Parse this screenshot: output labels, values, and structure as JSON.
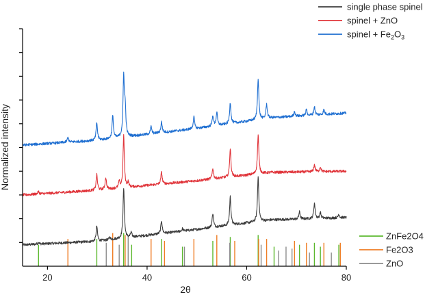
{
  "chart_data": {
    "type": "line",
    "xlabel": "2θ",
    "ylabel": "Normalized intensity",
    "xlim": [
      15,
      80
    ],
    "x_ticks": [
      20,
      40,
      60,
      80
    ],
    "ylim": [
      0,
      10
    ],
    "y_ticks": [
      1,
      2,
      3,
      4,
      5,
      6,
      7,
      8,
      9,
      10
    ],
    "y_tick_labels": "none",
    "grid": false,
    "series": [
      {
        "name": "single phase spinel",
        "color": "#3d3d3d",
        "baseline": [
          [
            15,
            0.9
          ],
          [
            30,
            1.05
          ],
          [
            50,
            1.55
          ],
          [
            65,
            1.95
          ],
          [
            80,
            2.05
          ]
        ],
        "peaks": [
          [
            18.2,
            0.08
          ],
          [
            29.9,
            0.65
          ],
          [
            32.5,
            0.1
          ],
          [
            35.3,
            2.1
          ],
          [
            36.8,
            0.2
          ],
          [
            42.9,
            0.55
          ],
          [
            47.1,
            0.1
          ],
          [
            53.2,
            0.6
          ],
          [
            56.7,
            1.2
          ],
          [
            62.3,
            1.9
          ],
          [
            70.6,
            0.3
          ],
          [
            73.6,
            0.65
          ],
          [
            74.8,
            0.25
          ],
          [
            78.5,
            0.15
          ]
        ]
      },
      {
        "name": "spinel + ZnO",
        "color": "#e0343a",
        "baseline": [
          [
            15,
            3.0
          ],
          [
            30,
            3.2
          ],
          [
            50,
            3.6
          ],
          [
            65,
            3.95
          ],
          [
            80,
            4.0
          ]
        ],
        "peaks": [
          [
            18.2,
            0.1
          ],
          [
            29.9,
            0.65
          ],
          [
            31.7,
            0.5
          ],
          [
            34.4,
            0.25
          ],
          [
            35.3,
            2.2
          ],
          [
            36.2,
            0.2
          ],
          [
            42.9,
            0.5
          ],
          [
            53.2,
            0.45
          ],
          [
            56.7,
            1.2
          ],
          [
            62.3,
            1.65
          ],
          [
            73.6,
            0.3
          ],
          [
            74.8,
            0.2
          ]
        ]
      },
      {
        "name": "spinel + Fe2O3",
        "color": "#1f6fd1",
        "baseline": [
          [
            15,
            5.1
          ],
          [
            30,
            5.3
          ],
          [
            50,
            5.8
          ],
          [
            65,
            6.25
          ],
          [
            80,
            6.45
          ]
        ],
        "peaks": [
          [
            24.1,
            0.2
          ],
          [
            29.9,
            0.75
          ],
          [
            33.1,
            0.95
          ],
          [
            35.3,
            2.5
          ],
          [
            35.6,
            1.1
          ],
          [
            40.8,
            0.3
          ],
          [
            42.9,
            0.45
          ],
          [
            49.4,
            0.5
          ],
          [
            53.2,
            0.45
          ],
          [
            54.0,
            0.55
          ],
          [
            56.7,
            0.9
          ],
          [
            62.3,
            1.75
          ],
          [
            64.0,
            0.6
          ],
          [
            69.6,
            0.2
          ],
          [
            72.0,
            0.25
          ],
          [
            73.6,
            0.35
          ],
          [
            75.5,
            0.2
          ]
        ]
      }
    ],
    "reference_sets": [
      {
        "name": "ZnFe2O4",
        "color": "#5cb82e",
        "lines": [
          [
            18.2,
            0.55
          ],
          [
            29.9,
            0.7
          ],
          [
            35.3,
            0.85
          ],
          [
            36.9,
            0.55
          ],
          [
            42.9,
            0.7
          ],
          [
            47.1,
            0.5
          ],
          [
            53.2,
            0.65
          ],
          [
            56.7,
            0.75
          ],
          [
            62.3,
            0.8
          ],
          [
            65.5,
            0.5
          ],
          [
            70.6,
            0.55
          ],
          [
            73.6,
            0.6
          ],
          [
            74.8,
            0.5
          ],
          [
            78.5,
            0.55
          ]
        ]
      },
      {
        "name": "Fe2O3",
        "color": "#ef7d24",
        "lines": [
          [
            24.1,
            0.7
          ],
          [
            33.1,
            0.85
          ],
          [
            35.6,
            0.8
          ],
          [
            40.8,
            0.7
          ],
          [
            43.5,
            0.65
          ],
          [
            49.4,
            0.7
          ],
          [
            54.0,
            0.8
          ],
          [
            57.6,
            0.65
          ],
          [
            62.4,
            0.7
          ],
          [
            64.0,
            0.7
          ],
          [
            69.6,
            0.65
          ],
          [
            72.0,
            0.6
          ],
          [
            75.5,
            0.6
          ],
          [
            78.8,
            0.6
          ]
        ]
      },
      {
        "name": "ZnO",
        "color": "#8c8c8c",
        "lines": [
          [
            31.8,
            0.6
          ],
          [
            34.4,
            0.55
          ],
          [
            36.2,
            0.75
          ],
          [
            47.5,
            0.5
          ],
          [
            56.6,
            0.6
          ],
          [
            62.9,
            0.55
          ],
          [
            66.4,
            0.4
          ],
          [
            67.9,
            0.5
          ],
          [
            69.1,
            0.45
          ],
          [
            72.6,
            0.35
          ],
          [
            77.0,
            0.35
          ]
        ]
      }
    ],
    "legend_upper": {
      "placement": "top-right",
      "entries": [
        {
          "label": "single phase spinel",
          "label_main": "single phase spinel",
          "sub": "",
          "color": "#3d3d3d"
        },
        {
          "label": "spinel + ZnO",
          "label_main": "spinel + ZnO",
          "sub": "",
          "color": "#e0343a"
        },
        {
          "label": "spinel + Fe2O3",
          "label_main": "spinel + Fe",
          "sub": "2",
          "label_mid": "O",
          "sub2": "3",
          "color": "#1f6fd1"
        }
      ]
    },
    "legend_lower": {
      "placement": "right-bottom",
      "entries": [
        {
          "label": "ZnFe2O4",
          "color": "#5cb82e"
        },
        {
          "label": "Fe2O3",
          "color": "#ef7d24"
        },
        {
          "label": "ZnO",
          "color": "#8c8c8c"
        }
      ]
    }
  }
}
